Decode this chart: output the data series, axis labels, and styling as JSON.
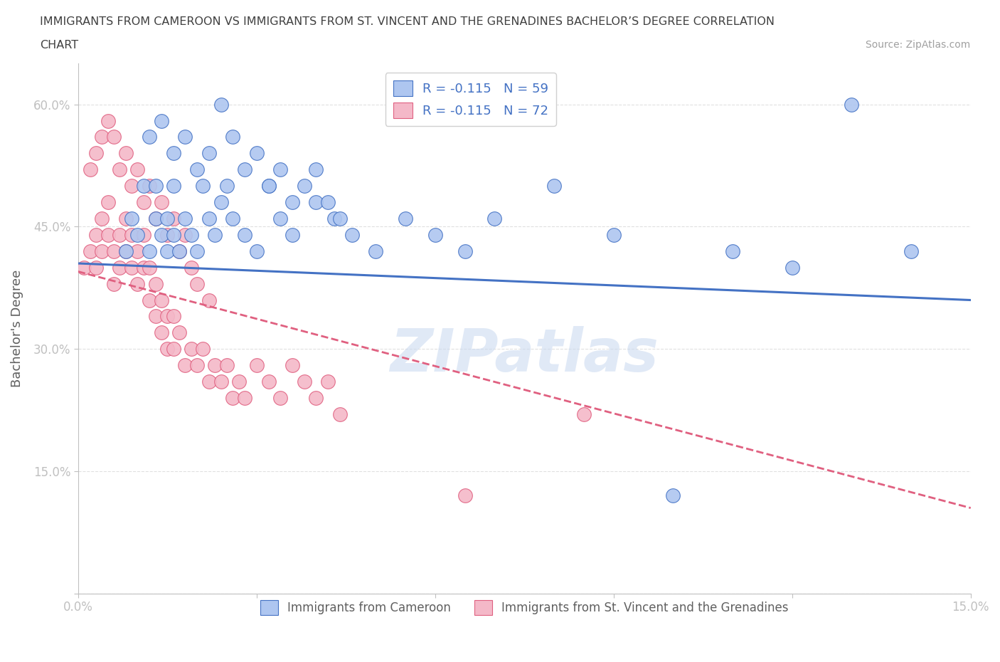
{
  "title_line1": "IMMIGRANTS FROM CAMEROON VS IMMIGRANTS FROM ST. VINCENT AND THE GRENADINES BACHELOR’S DEGREE CORRELATION",
  "title_line2": "CHART",
  "source_text": "Source: ZipAtlas.com",
  "ylabel": "Bachelor's Degree",
  "xlim": [
    0.0,
    0.15
  ],
  "ylim": [
    0.0,
    0.65
  ],
  "xtick_positions": [
    0.0,
    0.03,
    0.06,
    0.09,
    0.12,
    0.15
  ],
  "xticklabels": [
    "0.0%",
    "",
    "",
    "",
    "",
    "15.0%"
  ],
  "ytick_positions": [
    0.0,
    0.15,
    0.3,
    0.45,
    0.6
  ],
  "yticklabels": [
    "",
    "15.0%",
    "30.0%",
    "45.0%",
    "60.0%"
  ],
  "legend_entries": [
    {
      "label": "R = -0.115   N = 59",
      "color": "#aec6f0"
    },
    {
      "label": "R = -0.115   N = 72",
      "color": "#f4b8c8"
    }
  ],
  "legend_labels_bottom": [
    {
      "label": "Immigrants from Cameroon",
      "color": "#aec6f0"
    },
    {
      "label": "Immigrants from St. Vincent and the Grenadines",
      "color": "#f4b8c8"
    }
  ],
  "cameroon_scatter_x": [
    0.008,
    0.009,
    0.01,
    0.011,
    0.012,
    0.013,
    0.013,
    0.014,
    0.015,
    0.015,
    0.016,
    0.016,
    0.017,
    0.018,
    0.019,
    0.02,
    0.021,
    0.022,
    0.023,
    0.024,
    0.025,
    0.026,
    0.028,
    0.03,
    0.032,
    0.034,
    0.036,
    0.04,
    0.043,
    0.046,
    0.05,
    0.055,
    0.06,
    0.065,
    0.07,
    0.08,
    0.09,
    0.1,
    0.11,
    0.12,
    0.13,
    0.14,
    0.012,
    0.014,
    0.016,
    0.018,
    0.02,
    0.022,
    0.024,
    0.026,
    0.028,
    0.03,
    0.032,
    0.034,
    0.036,
    0.038,
    0.04,
    0.042,
    0.044
  ],
  "cameroon_scatter_y": [
    0.42,
    0.46,
    0.44,
    0.5,
    0.42,
    0.46,
    0.5,
    0.44,
    0.42,
    0.46,
    0.5,
    0.44,
    0.42,
    0.46,
    0.44,
    0.42,
    0.5,
    0.46,
    0.44,
    0.48,
    0.5,
    0.46,
    0.44,
    0.42,
    0.5,
    0.46,
    0.44,
    0.48,
    0.46,
    0.44,
    0.42,
    0.46,
    0.44,
    0.42,
    0.46,
    0.5,
    0.44,
    0.12,
    0.42,
    0.4,
    0.6,
    0.42,
    0.56,
    0.58,
    0.54,
    0.56,
    0.52,
    0.54,
    0.6,
    0.56,
    0.52,
    0.54,
    0.5,
    0.52,
    0.48,
    0.5,
    0.52,
    0.48,
    0.46
  ],
  "stvincent_scatter_x": [
    0.001,
    0.002,
    0.003,
    0.003,
    0.004,
    0.004,
    0.005,
    0.005,
    0.006,
    0.006,
    0.007,
    0.007,
    0.008,
    0.008,
    0.009,
    0.009,
    0.01,
    0.01,
    0.011,
    0.011,
    0.012,
    0.012,
    0.013,
    0.013,
    0.014,
    0.014,
    0.015,
    0.015,
    0.016,
    0.016,
    0.017,
    0.018,
    0.019,
    0.02,
    0.021,
    0.022,
    0.023,
    0.024,
    0.025,
    0.026,
    0.027,
    0.028,
    0.03,
    0.032,
    0.034,
    0.036,
    0.038,
    0.04,
    0.042,
    0.044,
    0.002,
    0.003,
    0.004,
    0.005,
    0.006,
    0.007,
    0.008,
    0.009,
    0.01,
    0.011,
    0.012,
    0.013,
    0.014,
    0.015,
    0.016,
    0.017,
    0.018,
    0.019,
    0.02,
    0.022,
    0.085,
    0.065
  ],
  "stvincent_scatter_y": [
    0.4,
    0.42,
    0.44,
    0.4,
    0.46,
    0.42,
    0.48,
    0.44,
    0.38,
    0.42,
    0.44,
    0.4,
    0.46,
    0.42,
    0.44,
    0.4,
    0.42,
    0.38,
    0.44,
    0.4,
    0.36,
    0.4,
    0.38,
    0.34,
    0.36,
    0.32,
    0.34,
    0.3,
    0.34,
    0.3,
    0.32,
    0.28,
    0.3,
    0.28,
    0.3,
    0.26,
    0.28,
    0.26,
    0.28,
    0.24,
    0.26,
    0.24,
    0.28,
    0.26,
    0.24,
    0.28,
    0.26,
    0.24,
    0.26,
    0.22,
    0.52,
    0.54,
    0.56,
    0.58,
    0.56,
    0.52,
    0.54,
    0.5,
    0.52,
    0.48,
    0.5,
    0.46,
    0.48,
    0.44,
    0.46,
    0.42,
    0.44,
    0.4,
    0.38,
    0.36,
    0.22,
    0.12
  ],
  "cameroon_line_x": [
    0.0,
    0.15
  ],
  "cameroon_line_y": [
    0.405,
    0.36
  ],
  "cameroon_line_color": "#4472c4",
  "cameroon_dot_color": "#aec6f0",
  "cameroon_dot_edge_color": "#4472c4",
  "stvincent_line_x": [
    0.0,
    0.15
  ],
  "stvincent_line_y": [
    0.395,
    0.105
  ],
  "stvincent_line_color": "#e06080",
  "stvincent_line_style": "--",
  "stvincent_dot_color": "#f4b8c8",
  "stvincent_dot_edge_color": "#e06080",
  "watermark_text": "ZIPatlas",
  "watermark_color": "#c8d8f0",
  "grid_color": "#e0e0e0",
  "background_color": "#ffffff",
  "title_color": "#404040",
  "axis_label_color": "#606060",
  "tick_label_color": "#4472c4",
  "source_color": "#a0a0a0"
}
